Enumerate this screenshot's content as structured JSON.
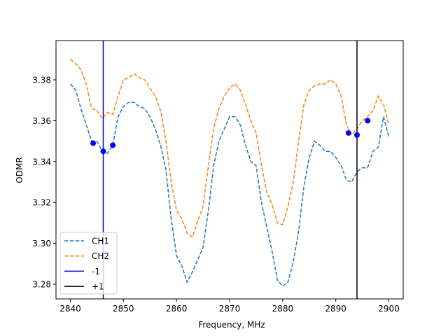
{
  "chart_data": {
    "type": "line",
    "title": "",
    "xlabel": "Frequency, MHz",
    "ylabel": "ODMR",
    "xlim": [
      2837.3,
      2902.7
    ],
    "ylim": [
      3.2728,
      3.3992
    ],
    "xticks": [
      2840,
      2850,
      2860,
      2870,
      2880,
      2890,
      2900
    ],
    "yticks": [
      3.28,
      3.3,
      3.32,
      3.34,
      3.36,
      3.38
    ],
    "ytick_labels": [
      "3.28",
      "3.30",
      "3.32",
      "3.34",
      "3.36",
      "3.38"
    ],
    "grid": false,
    "legend_position": "lower-left",
    "series": [
      {
        "name": "CH1",
        "style": "dashed",
        "color": "#1f77b4",
        "x": [
          2840,
          2841,
          2842,
          2843,
          2844,
          2845,
          2846,
          2847,
          2848,
          2849,
          2850,
          2851,
          2852,
          2853,
          2854,
          2855,
          2856,
          2857,
          2858,
          2859,
          2860,
          2861,
          2862,
          2863,
          2864,
          2865,
          2866,
          2867,
          2868,
          2869,
          2870,
          2871,
          2872,
          2873,
          2874,
          2875,
          2876,
          2877,
          2878,
          2879,
          2880,
          2881,
          2882,
          2883,
          2884,
          2885,
          2886,
          2887,
          2888,
          2889,
          2890,
          2891,
          2892,
          2893,
          2894,
          2895,
          2896,
          2897,
          2898,
          2899,
          2900
        ],
        "values": [
          3.378,
          3.375,
          3.366,
          3.358,
          3.35,
          3.35,
          3.345,
          3.344,
          3.348,
          3.362,
          3.367,
          3.369,
          3.369,
          3.367,
          3.366,
          3.362,
          3.356,
          3.348,
          3.336,
          3.312,
          3.294,
          3.289,
          3.281,
          3.286,
          3.292,
          3.298,
          3.316,
          3.338,
          3.35,
          3.356,
          3.362,
          3.362,
          3.358,
          3.348,
          3.34,
          3.338,
          3.32,
          3.308,
          3.296,
          3.282,
          3.279,
          3.281,
          3.291,
          3.306,
          3.328,
          3.342,
          3.35,
          3.348,
          3.345,
          3.345,
          3.342,
          3.338,
          3.331,
          3.33,
          3.335,
          3.337,
          3.337,
          3.345,
          3.347,
          3.362,
          3.352
        ]
      },
      {
        "name": "CH2",
        "style": "dashed",
        "color": "#ff7f0e",
        "x": [
          2840,
          2841,
          2842,
          2843,
          2844,
          2845,
          2846,
          2847,
          2848,
          2849,
          2850,
          2851,
          2852,
          2853,
          2854,
          2855,
          2856,
          2857,
          2858,
          2859,
          2860,
          2861,
          2862,
          2863,
          2864,
          2865,
          2866,
          2867,
          2868,
          2869,
          2870,
          2871,
          2872,
          2873,
          2874,
          2875,
          2876,
          2877,
          2878,
          2879,
          2880,
          2881,
          2882,
          2883,
          2884,
          2885,
          2886,
          2887,
          2888,
          2889,
          2890,
          2891,
          2892,
          2893,
          2894,
          2895,
          2896,
          2897,
          2898,
          2899,
          2900
        ],
        "values": [
          3.39,
          3.388,
          3.385,
          3.378,
          3.366,
          3.365,
          3.361,
          3.364,
          3.363,
          3.372,
          3.38,
          3.381,
          3.383,
          3.381,
          3.38,
          3.376,
          3.372,
          3.365,
          3.35,
          3.33,
          3.316,
          3.312,
          3.305,
          3.303,
          3.311,
          3.318,
          3.338,
          3.356,
          3.366,
          3.372,
          3.376,
          3.378,
          3.375,
          3.368,
          3.36,
          3.354,
          3.338,
          3.325,
          3.319,
          3.31,
          3.309,
          3.318,
          3.33,
          3.35,
          3.368,
          3.375,
          3.377,
          3.378,
          3.378,
          3.38,
          3.378,
          3.372,
          3.358,
          3.353,
          3.356,
          3.36,
          3.362,
          3.365,
          3.372,
          3.368,
          3.358
        ]
      }
    ],
    "markers": {
      "color": "#0000ff",
      "points": [
        {
          "x": 2844.3,
          "y": 3.349
        },
        {
          "x": 2846.2,
          "y": 3.345
        },
        {
          "x": 2848.0,
          "y": 3.348
        },
        {
          "x": 2892.4,
          "y": 3.354
        },
        {
          "x": 2894.0,
          "y": 3.353
        },
        {
          "x": 2896.0,
          "y": 3.36
        }
      ]
    },
    "vlines": [
      {
        "name": "-1",
        "x": 2846.2,
        "color": "#0000cc"
      },
      {
        "name": "+1",
        "x": 2894.0,
        "color": "#000000"
      }
    ],
    "legend": [
      {
        "label": "CH1",
        "color": "#1f77b4",
        "style": "dashed"
      },
      {
        "label": "CH2",
        "color": "#ff7f0e",
        "style": "dashed"
      },
      {
        "label": "-1",
        "color": "#0000cc",
        "style": "solid"
      },
      {
        "label": "+1",
        "color": "#000000",
        "style": "solid"
      }
    ]
  }
}
